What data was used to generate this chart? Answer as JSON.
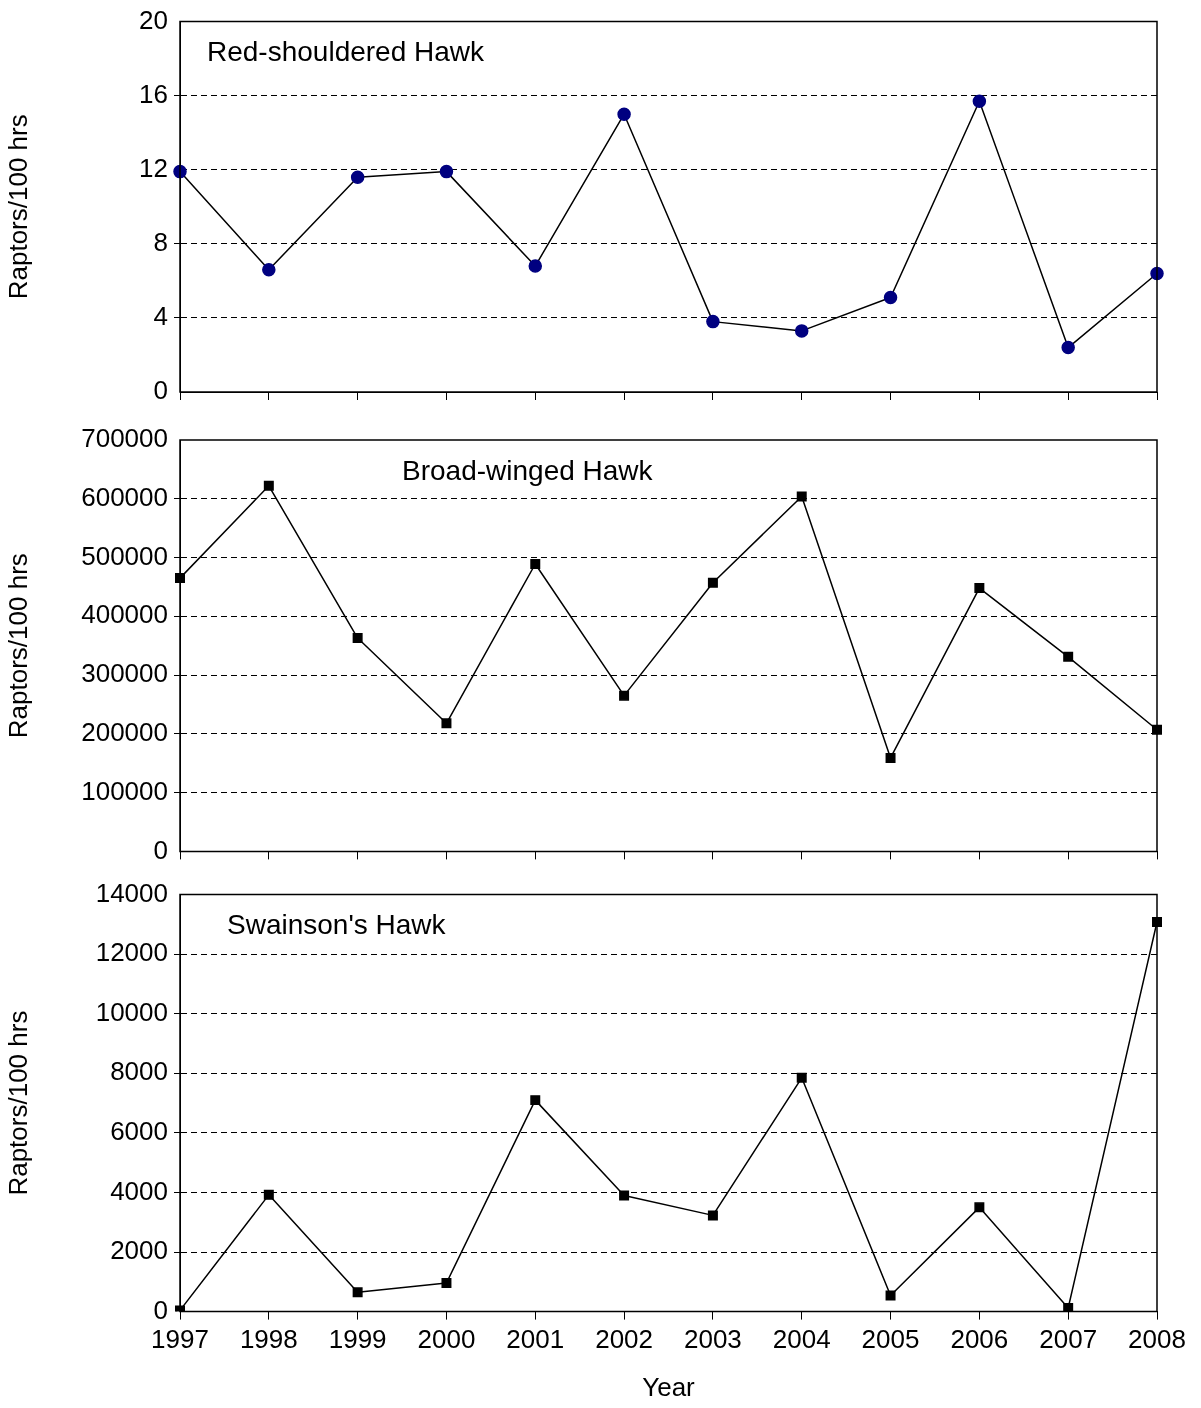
{
  "chart_data": [
    {
      "type": "line",
      "title": "Red-shouldered Hawk",
      "ylabel": "Raptors/100 hrs",
      "categories": [
        "1997",
        "1998",
        "1999",
        "2000",
        "2001",
        "2002",
        "2003",
        "2004",
        "2005",
        "2006",
        "2007",
        "2008"
      ],
      "series": [
        {
          "color": "#000080",
          "values": [
            11.9,
            6.6,
            11.6,
            11.9,
            6.8,
            15.0,
            3.8,
            3.3,
            5.1,
            15.7,
            2.4,
            6.4
          ]
        }
      ],
      "ylim": [
        0,
        20
      ],
      "yticks": [
        0,
        4,
        8,
        12,
        16,
        20
      ],
      "grid": "y",
      "marker": "circle",
      "line_style": "solid",
      "legend": false,
      "tick_labels": "y"
    },
    {
      "type": "line",
      "title": "Broad-winged Hawk",
      "ylabel": "Raptors/100 hrs",
      "categories": [
        "1997",
        "1998",
        "1999",
        "2000",
        "2001",
        "2002",
        "2003",
        "2004",
        "2005",
        "2006",
        "2007",
        "2008"
      ],
      "series": [
        {
          "color": "#000000",
          "values": [
            465000,
            622000,
            363000,
            218000,
            489000,
            265000,
            457000,
            604000,
            159000,
            448000,
            331000,
            207000
          ]
        }
      ],
      "ylim": [
        0,
        700000
      ],
      "yticks": [
        0,
        100000,
        200000,
        300000,
        400000,
        500000,
        600000,
        700000
      ],
      "grid": "y",
      "marker": "square",
      "line_style": "solid",
      "legend": false,
      "tick_labels": "y"
    },
    {
      "type": "line",
      "title": "Swainson's Hawk",
      "xlabel": "Year",
      "ylabel": "Raptors/100 hrs",
      "categories": [
        "1997",
        "1998",
        "1999",
        "2000",
        "2001",
        "2002",
        "2003",
        "2004",
        "2005",
        "2006",
        "2007",
        "2008"
      ],
      "series": [
        {
          "color": "#000000",
          "values": [
            40,
            3920,
            650,
            960,
            7100,
            3900,
            3230,
            7850,
            540,
            3500,
            120,
            13080
          ]
        }
      ],
      "ylim": [
        0,
        14000
      ],
      "yticks": [
        0,
        2000,
        4000,
        6000,
        8000,
        10000,
        12000,
        14000
      ],
      "grid": "y",
      "marker": "square",
      "line_style": "solid",
      "legend": false
    }
  ]
}
